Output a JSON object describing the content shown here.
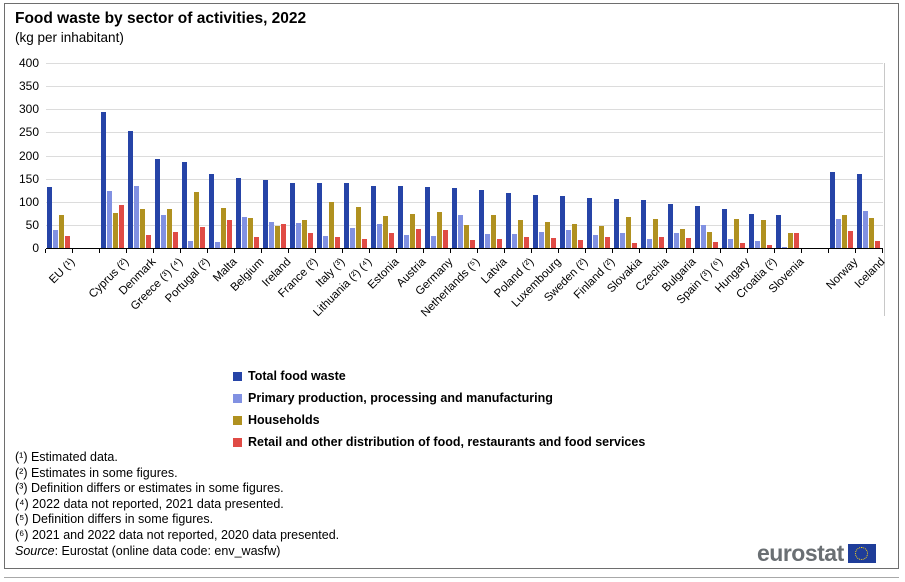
{
  "title": "Food waste by sector of activities, 2022",
  "subtitle": "(kg per inhabitant)",
  "legend": [
    {
      "label": "Total food waste",
      "color": "#2644A7"
    },
    {
      "label": "Primary production, processing and manufacturing",
      "color": "#8191E2"
    },
    {
      "label": "Households",
      "color": "#B09120"
    },
    {
      "label": "Retail and other distribution of food, restaurants and food services",
      "color": "#E04B45"
    }
  ],
  "footnotes": [
    "(¹) Estimated data.",
    "(²) Estimates in some figures.",
    "(³) Definition differs or estimates in some figures.",
    "(⁴) 2022 data not reported, 2021 data presented.",
    "(⁵) Definition differs in some figures.",
    "(⁶) 2021 and 2022 data not reported, 2020 data presented."
  ],
  "source": {
    "prefix": "Source",
    "text": ": Eurostat (online data code: env_wasfw)"
  },
  "logo": {
    "text": "eurostat",
    "flag_icon": "eu-flag-icon"
  },
  "chart_data": {
    "type": "bar",
    "title": "Food waste by sector of activities, 2022",
    "unit": "kg per inhabitant",
    "ylim": [
      0,
      400
    ],
    "ytick_step": 50,
    "ytick_labels": [
      "400",
      "350",
      "300",
      "250",
      "200",
      "150",
      "100",
      "50",
      "0"
    ],
    "grid": "horizontal",
    "legend_position": "bottom-left",
    "series": [
      "Total food waste",
      "Primary production, processing and manufacturing",
      "Households",
      "Retail and other distribution of food, restaurants and food services"
    ],
    "series_colors": [
      "#2644A7",
      "#8191E2",
      "#B09120",
      "#E04B45"
    ],
    "groups": [
      {
        "label": "EU (¹)",
        "values": [
          131,
          38,
          71,
          25
        ]
      },
      {
        "label": "",
        "spacer": true,
        "values": []
      },
      {
        "label": "Cyprus (²)",
        "values": [
          294,
          123,
          76,
          92
        ]
      },
      {
        "label": "Denmark",
        "values": [
          254,
          135,
          84,
          28
        ]
      },
      {
        "label": "Greece (³) (⁴)",
        "values": [
          193,
          72,
          84,
          34
        ]
      },
      {
        "label": "Portugal (²)",
        "values": [
          185,
          16,
          121,
          46
        ]
      },
      {
        "label": "Malta",
        "values": [
          161,
          13,
          87,
          60
        ]
      },
      {
        "label": "Belgium",
        "values": [
          152,
          68,
          65,
          23
        ]
      },
      {
        "label": "Ireland",
        "values": [
          146,
          57,
          47,
          51
        ]
      },
      {
        "label": "France (²)",
        "values": [
          141,
          55,
          60,
          32
        ]
      },
      {
        "label": "Italy (³)",
        "values": [
          140,
          26,
          100,
          24
        ]
      },
      {
        "label": "Lithuania (²) (⁴)",
        "values": [
          141,
          44,
          89,
          20
        ]
      },
      {
        "label": "Estonia",
        "values": [
          135,
          52,
          69,
          32
        ]
      },
      {
        "label": "Austria",
        "values": [
          134,
          28,
          74,
          42
        ]
      },
      {
        "label": "Germany",
        "values": [
          131,
          27,
          78,
          38
        ]
      },
      {
        "label": "Netherlands (⁵)",
        "values": [
          130,
          72,
          50,
          18
        ]
      },
      {
        "label": "Latvia",
        "values": [
          125,
          30,
          72,
          20
        ]
      },
      {
        "label": "Poland (²)",
        "values": [
          120,
          30,
          60,
          24
        ]
      },
      {
        "label": "Luxembourg",
        "values": [
          115,
          34,
          57,
          22
        ]
      },
      {
        "label": "Sweden (²)",
        "values": [
          112,
          39,
          51,
          18
        ]
      },
      {
        "label": "Finland (²)",
        "values": [
          108,
          28,
          48,
          24
        ]
      },
      {
        "label": "Slovakia",
        "values": [
          107,
          33,
          66,
          10
        ]
      },
      {
        "label": "Czechia",
        "values": [
          103,
          20,
          62,
          24
        ]
      },
      {
        "label": "Bulgaria",
        "values": [
          95,
          33,
          41,
          22
        ]
      },
      {
        "label": "Spain (³) (⁶)",
        "values": [
          90,
          50,
          34,
          13
        ]
      },
      {
        "label": "Hungary",
        "values": [
          85,
          20,
          62,
          10
        ]
      },
      {
        "label": "Croatia (²)",
        "values": [
          74,
          16,
          60,
          7
        ]
      },
      {
        "label": "Slovenia",
        "values": [
          71,
          2,
          33,
          33
        ]
      },
      {
        "label": "",
        "spacer": true,
        "values": []
      },
      {
        "label": "Norway",
        "values": [
          165,
          62,
          72,
          36
        ]
      },
      {
        "label": "Iceland",
        "values": [
          160,
          80,
          64,
          15
        ]
      }
    ]
  }
}
